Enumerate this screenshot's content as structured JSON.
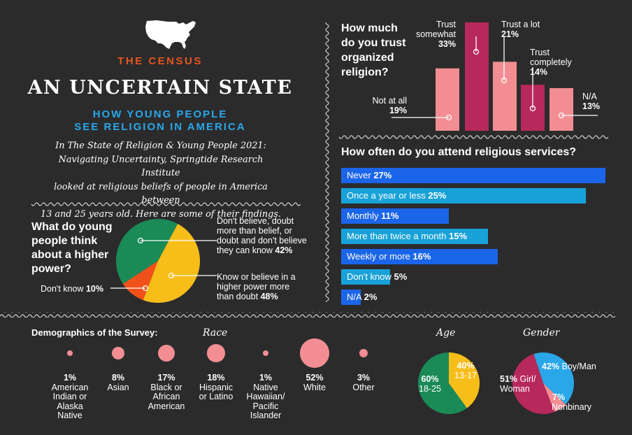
{
  "colors": {
    "bg": "#2b2b2c",
    "orange": "#e8551c",
    "blue": "#2aa7e8",
    "green": "#1a8a57",
    "yellow": "#f7be1a",
    "red": "#f0511a",
    "pink": "#f28e93",
    "maroon": "#b7285b",
    "bar_blue": "#1b65e8",
    "bar_cyan": "#18a2d7"
  },
  "header": {
    "icon": "usa-map-icon",
    "kicker": "THE CENSUS",
    "title": "AN UNCERTAIN STATE",
    "subtitle_line1": "HOW YOUNG PEOPLE",
    "subtitle_line2": "SEE RELIGION IN AMERICA"
  },
  "intro": {
    "line1": "In The State of Religion & Young People 2021:",
    "line2": "Navigating Uncertainty, Springtide Research Institute",
    "line3": "looked at religious beliefs of people in America between",
    "line4": "13 and 25 years old. Here are some of their findings."
  },
  "chart_data": [
    {
      "type": "pie",
      "title_lines": [
        "What do young",
        "people think",
        "about a higher",
        "power?"
      ],
      "slices": [
        {
          "label_lines": [
            "Don't believe, doubt",
            "more than belief, or",
            "doubt and don't believe",
            "they can know"
          ],
          "value": 42,
          "value_text": "42%"
        },
        {
          "label_lines": [
            "Know or believe in a",
            "higher power more",
            "than doubt"
          ],
          "value": 48,
          "value_text": "48%"
        },
        {
          "label_lines": [
            "Don't know"
          ],
          "value": 10,
          "value_text": "10%"
        }
      ]
    },
    {
      "type": "bar",
      "title_lines": [
        "How much",
        "do you trust",
        "organized",
        "religion?"
      ],
      "categories": [
        "Not at all",
        "Trust somewhat",
        "Trust a lot",
        "Trust completely",
        "N/A"
      ],
      "label_lines": [
        [
          "Not at all"
        ],
        [
          "Trust",
          "somewhat"
        ],
        [
          "Trust a lot"
        ],
        [
          "Trust",
          "completely"
        ],
        [
          "N/A"
        ]
      ],
      "values": [
        19,
        33,
        21,
        14,
        13
      ],
      "value_texts": [
        "19%",
        "33%",
        "21%",
        "14%",
        "13%"
      ]
    },
    {
      "type": "bar",
      "orientation": "horizontal",
      "title": "How often do you attend religious services?",
      "categories": [
        "Never",
        "Once a year or less",
        "Monthly",
        "More than twice a month",
        "Weekly or more",
        "Don't know",
        "N/A"
      ],
      "values": [
        27,
        25,
        11,
        15,
        16,
        5,
        2
      ],
      "value_texts": [
        "27%",
        "25%",
        "11%",
        "15%",
        "16%",
        "5%",
        "2%"
      ]
    },
    {
      "type": "scatter",
      "section_title": "Demographics of the Survey:",
      "title": "Race",
      "categories": [
        "American Indian or Alaska Native",
        "Asian",
        "Black or African American",
        "Hispanic or Latino",
        "Native Hawaiian/ Pacific Islander",
        "White",
        "Other"
      ],
      "label_lines": [
        [
          "American",
          "Indian or",
          "Alaska",
          "Native"
        ],
        [
          "Asian"
        ],
        [
          "Black or",
          "African",
          "American"
        ],
        [
          "Hispanic",
          "or Latino"
        ],
        [
          "Native",
          "Hawaiian/",
          "Pacific",
          "Islander"
        ],
        [
          "White"
        ],
        [
          "Other"
        ]
      ],
      "values": [
        1,
        8,
        17,
        18,
        1,
        52,
        3
      ],
      "value_texts": [
        "1%",
        "8%",
        "17%",
        "18%",
        "1%",
        "52%",
        "3%"
      ]
    },
    {
      "type": "pie",
      "title": "Age",
      "slices": [
        {
          "pct_text": "60%",
          "range": "18-25",
          "value": 60
        },
        {
          "pct_text": "40%",
          "range": "13-17",
          "value": 40
        }
      ]
    },
    {
      "type": "pie",
      "title": "Gender",
      "slices": [
        {
          "pct_text": "42%",
          "label": "Boy/Man",
          "value": 42
        },
        {
          "pct_text": "7%",
          "label": "Nonbinary",
          "value": 7
        },
        {
          "pct_text": "51%",
          "label_line1": "Girl/",
          "label_line2": "Woman",
          "value": 51
        }
      ]
    }
  ]
}
